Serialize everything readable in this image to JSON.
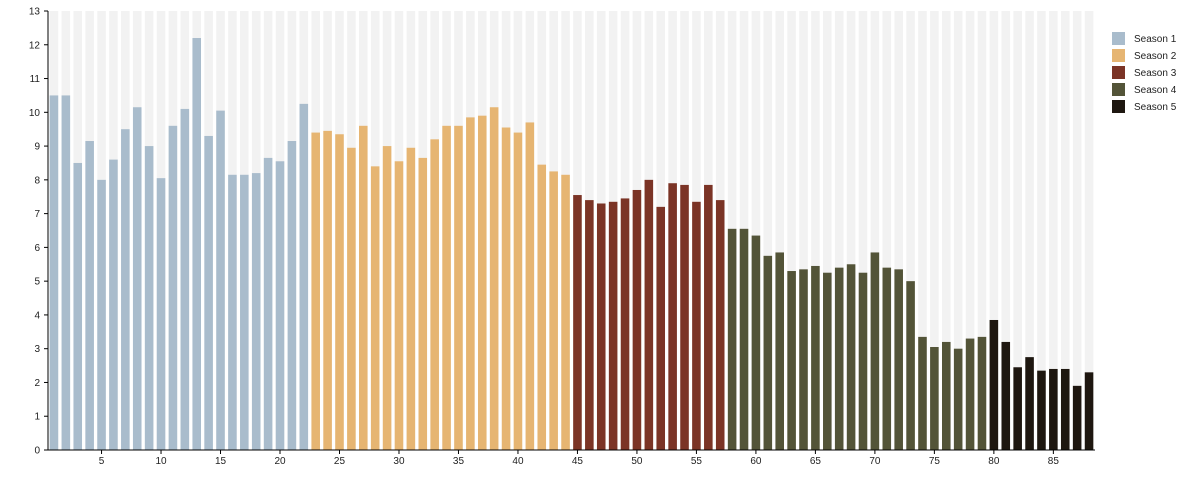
{
  "chart_data": {
    "type": "bar",
    "title": "",
    "xlabel": "",
    "ylabel": "",
    "xlim": [
      1,
      88
    ],
    "ylim": [
      0,
      13
    ],
    "x_ticks": [
      5,
      10,
      15,
      20,
      25,
      30,
      35,
      40,
      45,
      50,
      55,
      60,
      65,
      70,
      75,
      80,
      85
    ],
    "y_ticks": [
      0,
      1,
      2,
      3,
      4,
      5,
      6,
      7,
      8,
      9,
      10,
      11,
      12,
      13
    ],
    "background_bars": true,
    "legend_position": "right",
    "series": [
      {
        "name": "Season 1",
        "color": "#a9bccc",
        "x": [
          1,
          2,
          3,
          4,
          5,
          6,
          7,
          8,
          9,
          10,
          11,
          12,
          13,
          14,
          15,
          16,
          17,
          18,
          19,
          20,
          21,
          22
        ],
        "values": [
          10.5,
          10.5,
          8.5,
          9.15,
          8.0,
          8.6,
          9.5,
          10.15,
          9.0,
          8.05,
          9.6,
          10.1,
          12.2,
          9.3,
          10.05,
          8.15,
          8.15,
          8.2,
          8.65,
          8.55,
          9.15,
          10.25
        ]
      },
      {
        "name": "Season 2",
        "color": "#e6b572",
        "x": [
          23,
          24,
          25,
          26,
          27,
          28,
          29,
          30,
          31,
          32,
          33,
          34,
          35,
          36,
          37,
          38,
          39,
          40,
          41,
          42,
          43,
          44
        ],
        "values": [
          9.4,
          9.45,
          9.35,
          8.95,
          9.6,
          8.4,
          9.0,
          8.55,
          8.95,
          8.65,
          9.2,
          9.6,
          9.6,
          9.85,
          9.9,
          10.15,
          9.55,
          9.4,
          9.7,
          8.45,
          8.25,
          8.15
        ]
      },
      {
        "name": "Season 3",
        "color": "#7b3426",
        "x": [
          45,
          46,
          47,
          48,
          49,
          50,
          51,
          52,
          53,
          54,
          55,
          56,
          57
        ],
        "values": [
          7.55,
          7.4,
          7.3,
          7.35,
          7.45,
          7.7,
          8.0,
          7.2,
          7.9,
          7.85,
          7.35,
          7.85,
          7.4
        ]
      },
      {
        "name": "Season 4",
        "color": "#535438",
        "x": [
          58,
          59,
          60,
          61,
          62,
          63,
          64,
          65,
          66,
          67,
          68,
          69,
          70,
          71,
          72,
          73,
          74,
          75,
          76,
          77,
          78,
          79
        ],
        "values": [
          6.55,
          6.55,
          6.35,
          5.75,
          5.85,
          5.3,
          5.35,
          5.45,
          5.25,
          5.4,
          5.5,
          5.25,
          5.85,
          5.4,
          5.35,
          5.0,
          3.35,
          3.05,
          3.2,
          3.0,
          3.3,
          3.35
        ]
      },
      {
        "name": "Season 5",
        "color": "#1e1710",
        "x": [
          80,
          81,
          82,
          83,
          84,
          85,
          86,
          87,
          88
        ],
        "values": [
          3.85,
          3.2,
          2.45,
          2.75,
          2.35,
          2.4,
          2.4,
          1.9,
          2.3
        ]
      }
    ]
  }
}
